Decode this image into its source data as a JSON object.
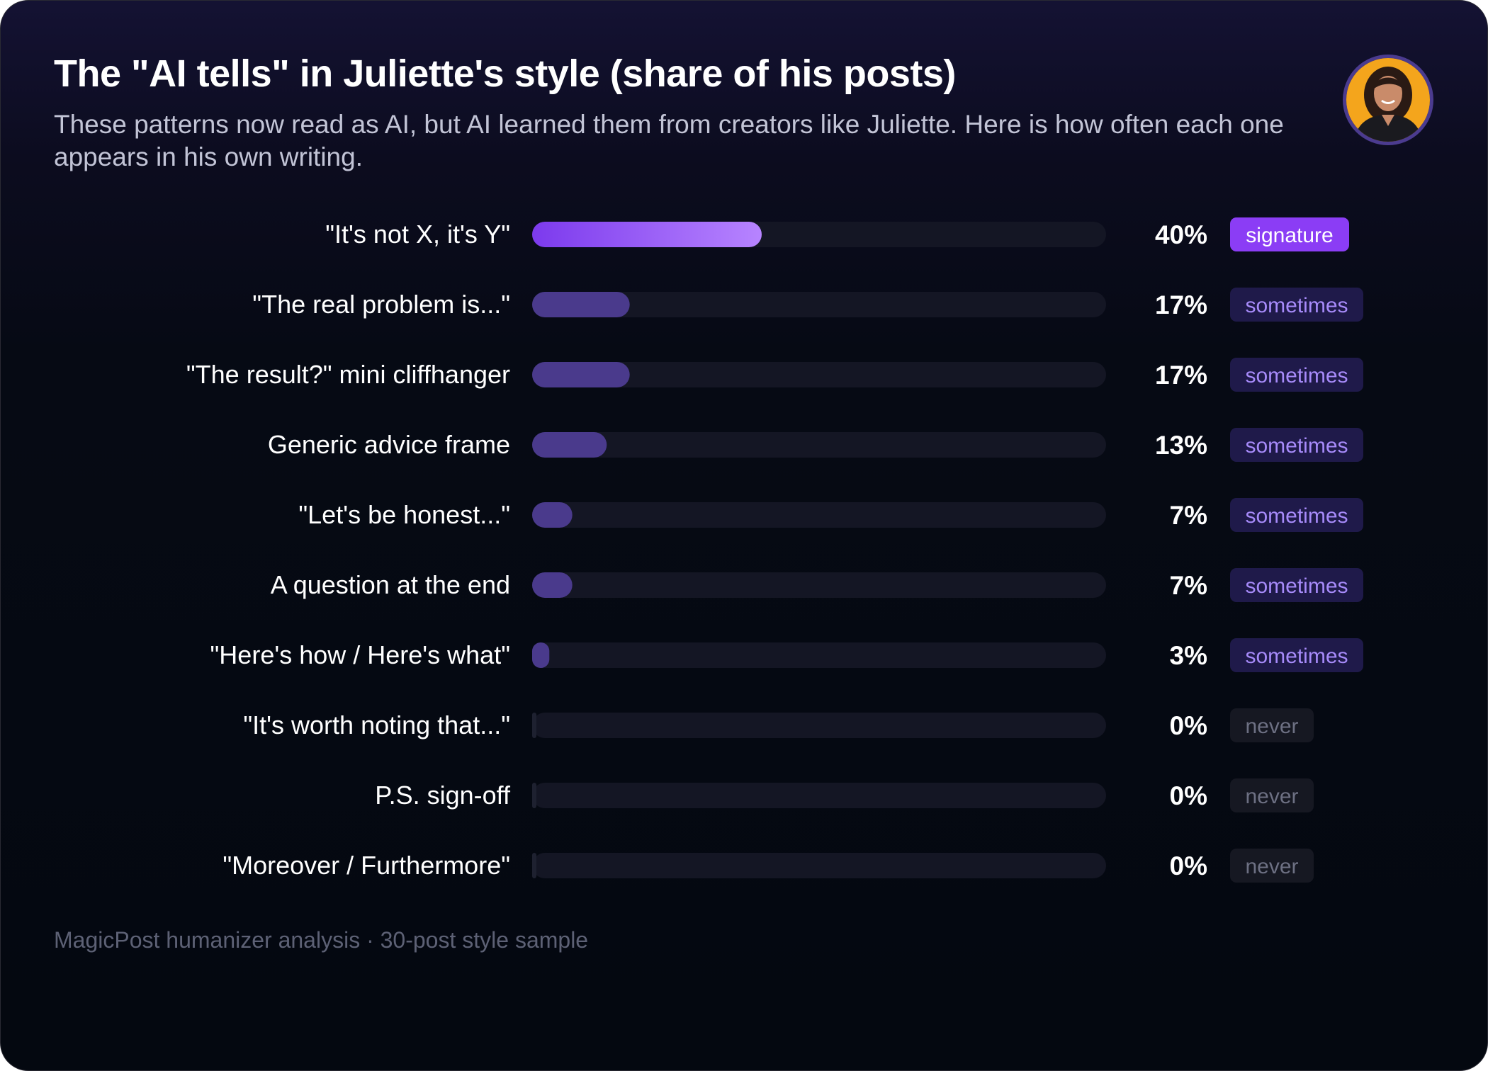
{
  "title": "The \"AI tells\" in Juliette's style (share of his posts)",
  "subtitle": "These patterns now read as AI, but AI learned them from creators like Juliette. Here is how often each one appears in his own writing.",
  "footer": "MagicPost humanizer analysis · 30-post style sample",
  "avatar": {
    "icon": "person-portrait-icon",
    "background": "#f4a51c"
  },
  "colors": {
    "track": "#141624",
    "signature_bar_start": "#7c3aed",
    "signature_bar_end": "#b784ff",
    "bar": "#4a3a8c",
    "signature_badge_bg": "#8b3df5",
    "signature_badge_text": "#ffffff",
    "sometimes_badge_bg": "#1f1a4a",
    "sometimes_badge_text": "#a78bfa",
    "never_badge_bg": "#161822",
    "never_badge_text": "#6d7083"
  },
  "chart_data": {
    "type": "bar",
    "orientation": "horizontal",
    "title": "The \"AI tells\" in Juliette's style (share of his posts)",
    "xlim": [
      0,
      100
    ],
    "value_format": "percent",
    "categories": [
      "\"It's not X, it's Y\"",
      "\"The real problem is...\"",
      "\"The result?\" mini cliffhanger",
      "Generic advice frame",
      "\"Let's be honest...\"",
      "A question at the end",
      "\"Here's how / Here's what\"",
      "\"It's worth noting that...\"",
      "P.S. sign-off",
      "\"Moreover / Furthermore\""
    ],
    "values": [
      40,
      17,
      17,
      13,
      7,
      7,
      3,
      0,
      0,
      0
    ],
    "value_labels": [
      "40%",
      "17%",
      "17%",
      "13%",
      "7%",
      "7%",
      "3%",
      "0%",
      "0%",
      "0%"
    ],
    "badges": [
      "signature",
      "sometimes",
      "sometimes",
      "sometimes",
      "sometimes",
      "sometimes",
      "sometimes",
      "never",
      "never",
      "never"
    ]
  }
}
